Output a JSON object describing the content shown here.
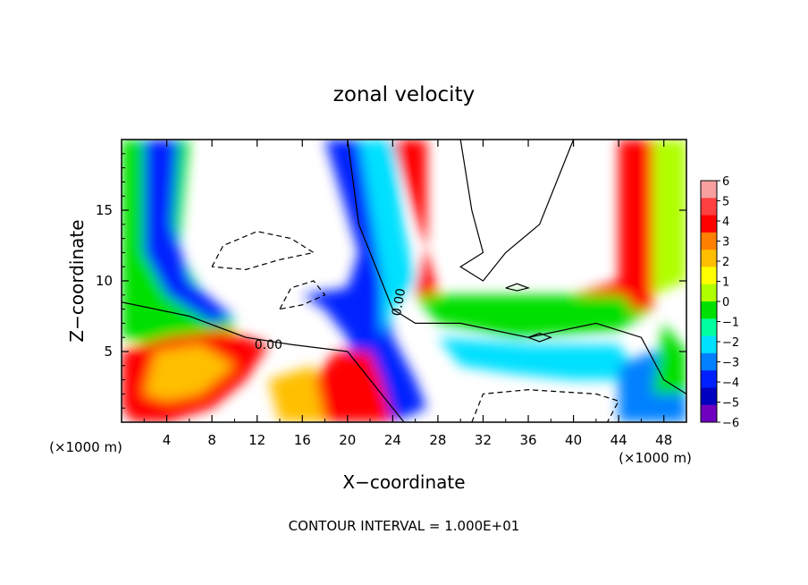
{
  "chart_data": {
    "type": "heatmap",
    "title": "zonal velocity",
    "xlabel": "X−coordinate",
    "ylabel": "Z−coordinate",
    "x_unit_left": "(×1000 m)",
    "x_unit_right": "(×1000 m)",
    "footer": "CONTOUR INTERVAL = 1.000E+01",
    "xlim": [
      0,
      50
    ],
    "ylim": [
      0,
      20
    ],
    "x_ticks": [
      4,
      8,
      12,
      16,
      20,
      24,
      28,
      32,
      36,
      40,
      44,
      48
    ],
    "x_tick_labels": [
      "4",
      "8",
      "12",
      "16",
      "20",
      "24",
      "28",
      "32",
      "36",
      "40",
      "44",
      "48"
    ],
    "y_ticks": [
      5,
      10,
      15
    ],
    "y_tick_labels": [
      "5",
      "10",
      "15"
    ],
    "colorbar": {
      "levels": [
        "6",
        "5",
        "4",
        "3",
        "2",
        "1",
        "0",
        "−1",
        "−2",
        "−3",
        "−4",
        "−5",
        "−6"
      ],
      "range": [
        -6,
        6
      ],
      "colors": [
        "#f7a0a0",
        "#ff4040",
        "#ff0000",
        "#ff8000",
        "#ffbf00",
        "#ffff00",
        "#b0ff00",
        "#00e000",
        "#00ffa0",
        "#00e0ff",
        "#0080ff",
        "#0020ff",
        "#0000c0",
        "#7000c0"
      ]
    },
    "contour_labels": [
      {
        "text": "0.00",
        "x": 13,
        "z": 5.5
      },
      {
        "text": "0.00",
        "x": 24.5,
        "z": 8.5
      }
    ],
    "grid": false,
    "legend": "right"
  }
}
